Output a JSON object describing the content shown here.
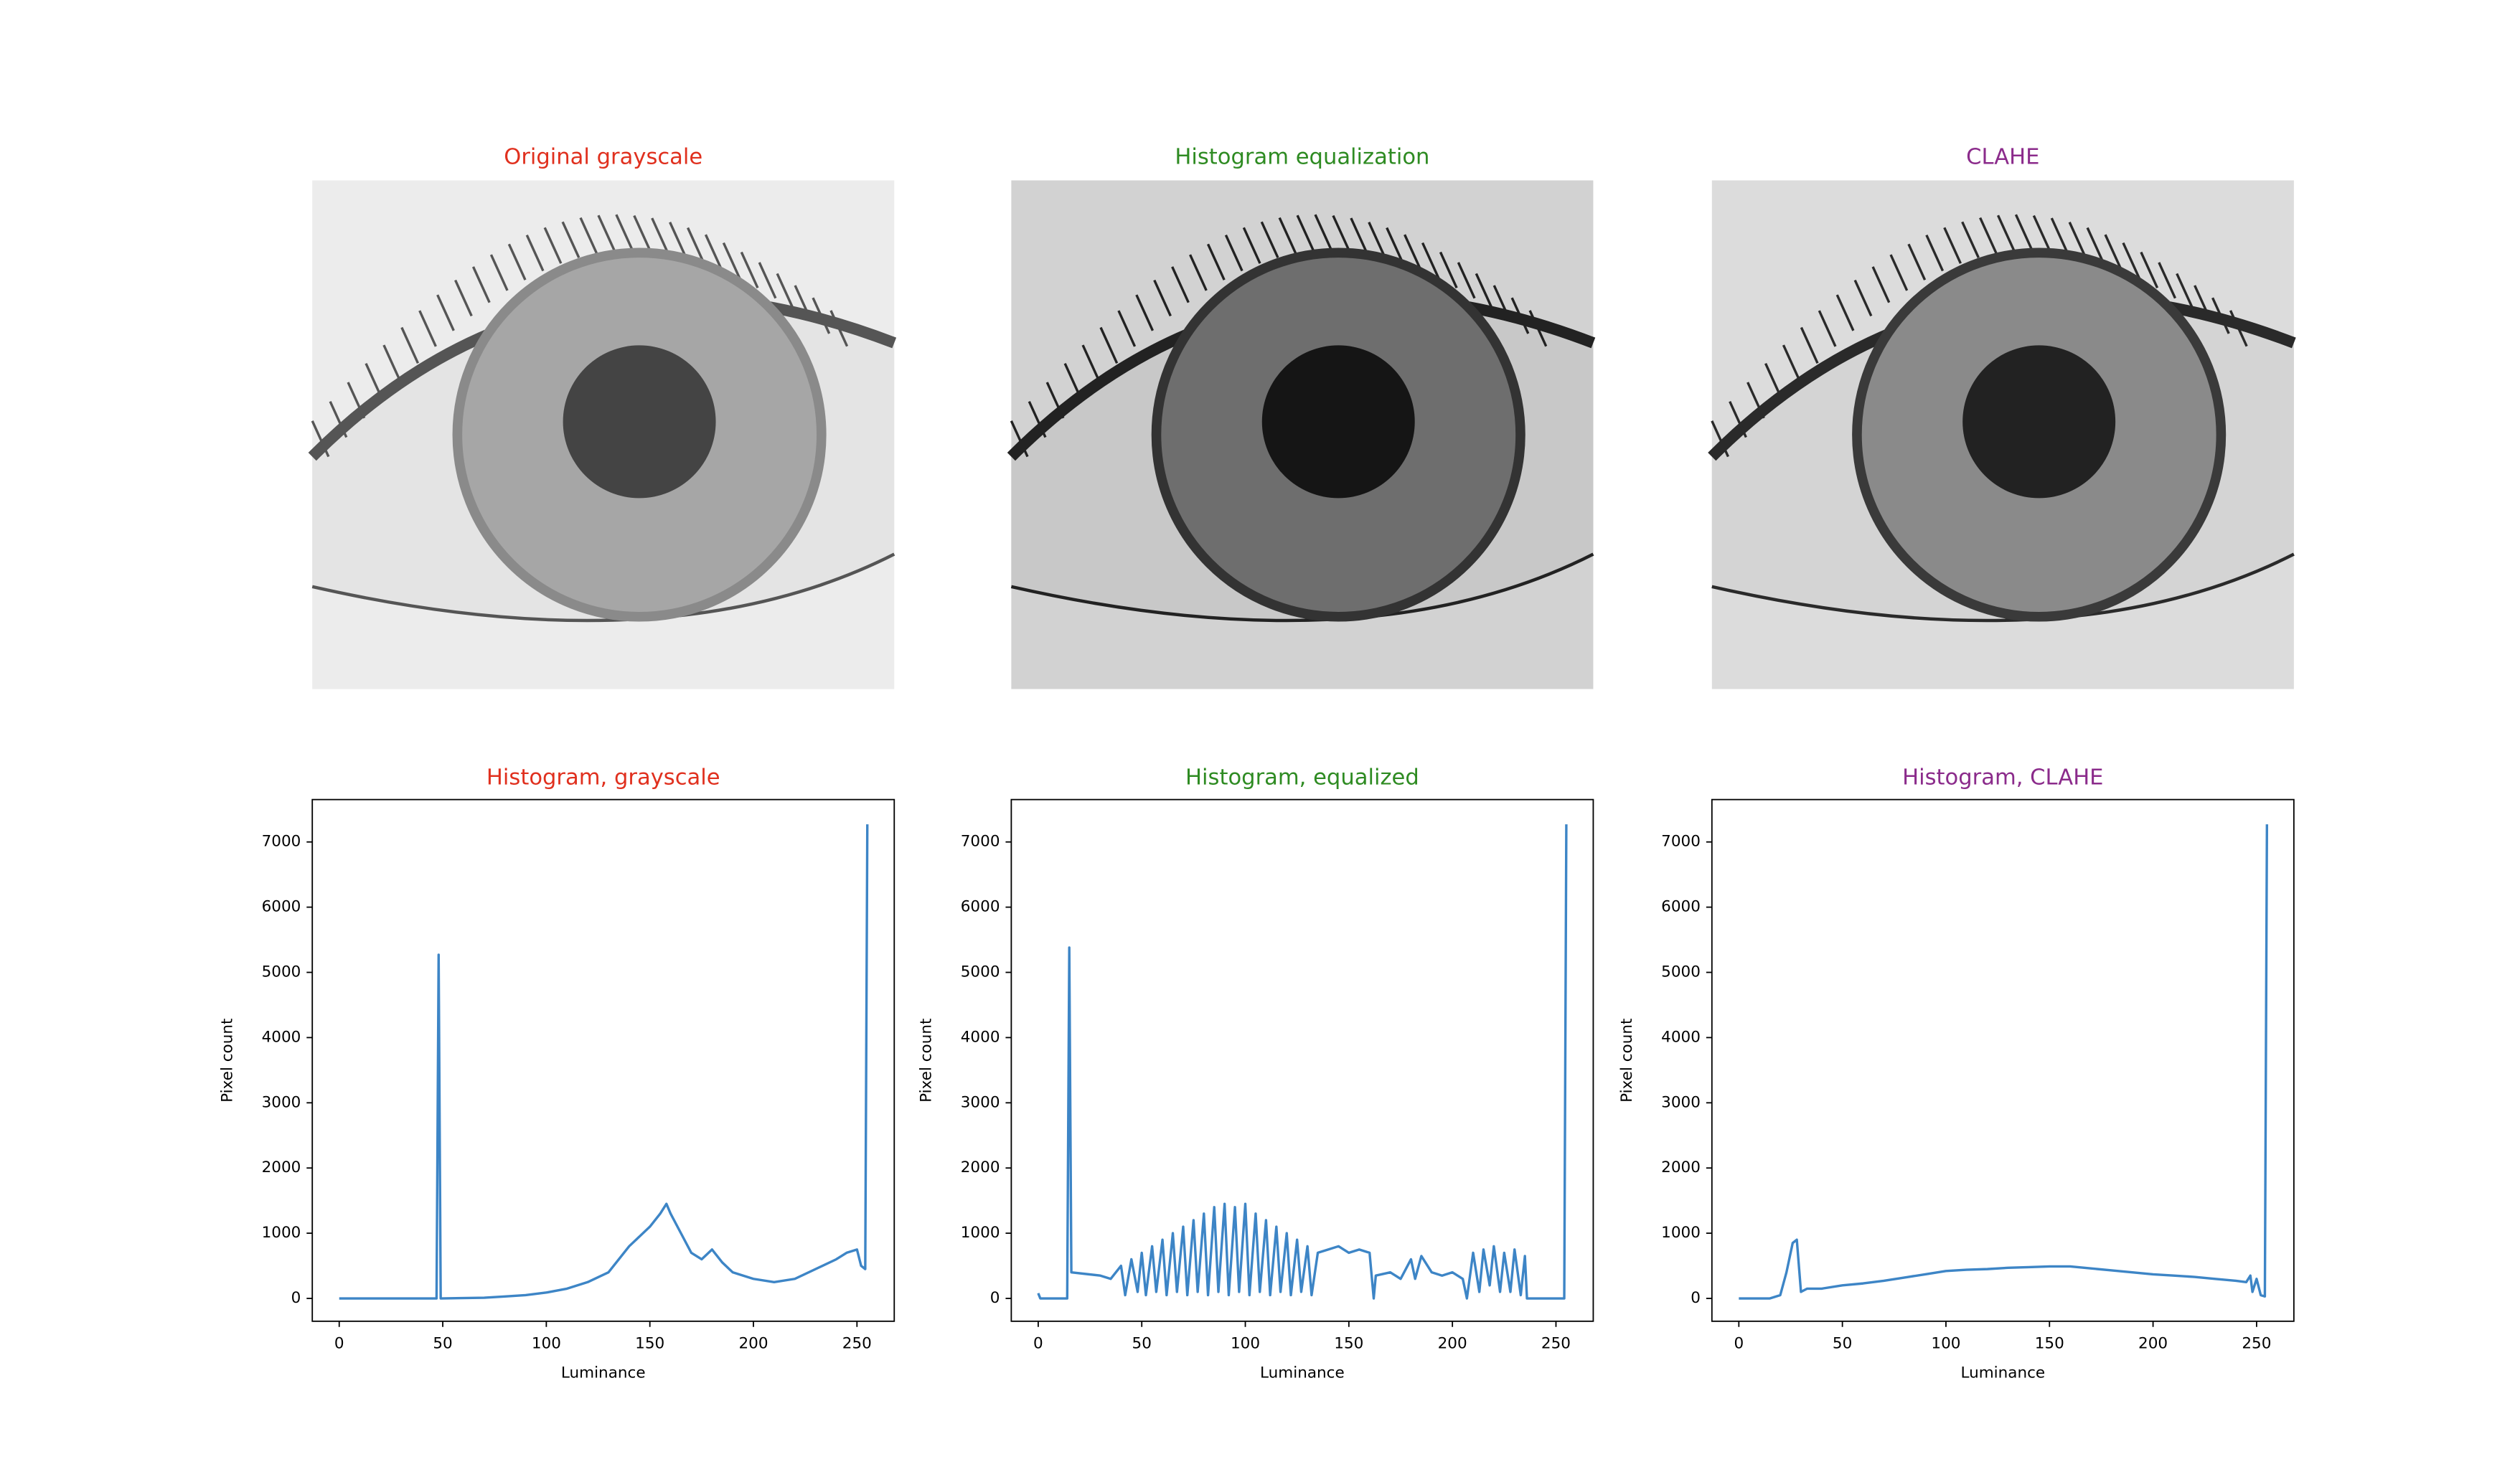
{
  "chart_data": [
    {
      "type": "image",
      "title": "Original grayscale",
      "title_color": "#e0301e"
    },
    {
      "type": "image",
      "title": "Histogram equalization",
      "title_color": "#2e8b22"
    },
    {
      "type": "image",
      "title": "CLAHE",
      "title_color": "#8b2b8b"
    },
    {
      "type": "line",
      "title": "Histogram, grayscale",
      "title_color": "#e0301e",
      "x_label": "Luminance",
      "y_label": "Pixel count",
      "x": [
        0,
        46,
        47,
        48,
        49,
        70,
        80,
        90,
        100,
        110,
        120,
        130,
        140,
        150,
        155,
        158,
        160,
        165,
        170,
        175,
        180,
        185,
        190,
        200,
        210,
        220,
        230,
        240,
        245,
        250,
        252,
        254,
        255
      ],
      "values": [
        0,
        0,
        0,
        5270,
        0,
        10,
        30,
        50,
        90,
        150,
        250,
        400,
        800,
        1100,
        1300,
        1450,
        1300,
        1000,
        700,
        600,
        750,
        550,
        400,
        300,
        250,
        300,
        450,
        600,
        700,
        750,
        500,
        450,
        7270
      ],
      "color": "#3d85c6",
      "xlim": [
        -13,
        268
      ],
      "ylim": [
        -350,
        7650
      ],
      "xticks": [
        0,
        50,
        100,
        150,
        200,
        250
      ],
      "yticks": [
        0,
        1000,
        2000,
        3000,
        4000,
        5000,
        6000,
        7000
      ]
    },
    {
      "type": "line",
      "title": "Histogram, equalized",
      "title_color": "#2e8b22",
      "x_label": "Luminance",
      "y_label": "Pixel count",
      "x": [
        0,
        1,
        14,
        15,
        16,
        30,
        35,
        40,
        42,
        45,
        48,
        50,
        52,
        55,
        57,
        60,
        62,
        65,
        67,
        70,
        72,
        75,
        77,
        80,
        82,
        85,
        87,
        90,
        92,
        95,
        97,
        100,
        102,
        105,
        107,
        110,
        112,
        115,
        117,
        120,
        122,
        125,
        127,
        130,
        132,
        135,
        140,
        145,
        150,
        155,
        160,
        162,
        163,
        170,
        175,
        180,
        182,
        185,
        190,
        195,
        200,
        205,
        207,
        210,
        213,
        215,
        218,
        220,
        223,
        225,
        228,
        230,
        233,
        235,
        236,
        254,
        255
      ],
      "values": [
        80,
        0,
        0,
        5380,
        400,
        350,
        300,
        500,
        50,
        600,
        100,
        700,
        50,
        800,
        100,
        900,
        50,
        1000,
        100,
        1100,
        50,
        1200,
        100,
        1300,
        50,
        1400,
        100,
        1450,
        50,
        1400,
        100,
        1450,
        50,
        1300,
        100,
        1200,
        50,
        1100,
        100,
        1000,
        50,
        900,
        100,
        800,
        50,
        700,
        750,
        800,
        700,
        750,
        700,
        0,
        350,
        400,
        300,
        600,
        300,
        650,
        400,
        350,
        400,
        300,
        0,
        700,
        100,
        750,
        200,
        800,
        100,
        700,
        100,
        750,
        50,
        650,
        0,
        0,
        7270
      ],
      "color": "#3d85c6",
      "xlim": [
        -13,
        268
      ],
      "ylim": [
        -350,
        7650
      ],
      "xticks": [
        0,
        50,
        100,
        150,
        200,
        250
      ],
      "yticks": [
        0,
        1000,
        2000,
        3000,
        4000,
        5000,
        6000,
        7000
      ]
    },
    {
      "type": "line",
      "title": "Histogram, CLAHE",
      "title_color": "#8b2b8b",
      "x_label": "Luminance",
      "y_label": "Pixel count",
      "x": [
        0,
        15,
        20,
        23,
        26,
        28,
        30,
        33,
        40,
        50,
        60,
        70,
        80,
        90,
        100,
        110,
        120,
        130,
        140,
        150,
        160,
        170,
        180,
        190,
        200,
        210,
        220,
        230,
        240,
        245,
        247,
        248,
        250,
        252,
        254,
        255
      ],
      "values": [
        0,
        0,
        50,
        400,
        850,
        900,
        100,
        150,
        150,
        200,
        230,
        270,
        320,
        370,
        420,
        440,
        450,
        470,
        480,
        490,
        490,
        460,
        430,
        400,
        370,
        350,
        330,
        300,
        270,
        250,
        350,
        100,
        300,
        50,
        30,
        7270
      ],
      "color": "#3d85c6",
      "xlim": [
        -13,
        268
      ],
      "ylim": [
        -350,
        7650
      ],
      "xticks": [
        0,
        50,
        100,
        150,
        200,
        250
      ],
      "yticks": [
        0,
        1000,
        2000,
        3000,
        4000,
        5000,
        6000,
        7000
      ]
    }
  ]
}
